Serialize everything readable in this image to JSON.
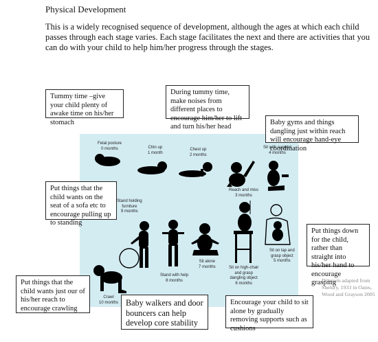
{
  "heading": "Physical Development",
  "intro": "This is a widely recognised sequence of development, although the ages at which each child passes through each stage varies. Each stage facilitates the next and there are activities that you can do with your child to help him/her progress through the stages.",
  "stages": [
    {
      "name": "Fetal posture",
      "age": "0 months"
    },
    {
      "name": "Chin up",
      "age": "1 month"
    },
    {
      "name": "Chest up",
      "age": "2 months"
    },
    {
      "name": "Reach and miss",
      "age": "3 months"
    },
    {
      "name": "Sit with support",
      "age": "4 months"
    },
    {
      "name": "Sit on lap and",
      "name2": "grasp object",
      "age": "5 months"
    },
    {
      "name": "Sit on high-chair",
      "name2": "and grasp",
      "name3": "dangling object",
      "age": "6 months"
    },
    {
      "name": "Sit alone",
      "age": "7 months"
    },
    {
      "name": "Stand with help",
      "age": "8 months"
    },
    {
      "name": "Stand holding",
      "name2": "furniture",
      "age": "9 months"
    },
    {
      "name": "Crawl",
      "age": "10 months"
    }
  ],
  "tips": {
    "tummy_time": "Tummy time –give your child plenty of awake time on his/her stomach",
    "noises": "During tummy time, make noises from different places to encourage him/her to lift and turn his/her head",
    "baby_gyms": "Baby gyms and things dangling just within reach will encourage hand-eye coordination",
    "sofa": "Put things that the child wants on the seat of a sofa etc to encourage pulling up to standing",
    "put_down": "Put things down for the child, rather than straight into his/her hand to encourage grasping",
    "crawling": "Put things that the child wants just our of his/her reach to encourage crawling",
    "walkers": "Baby walkers and door bouncers can help develop core stability",
    "sit_alone": "Encourage your child to sit alone by gradually removing supports such as cushions"
  },
  "credit": "Diagram adapted from Sheldry, 1933 in Oates, Wood and Grayson 2005"
}
